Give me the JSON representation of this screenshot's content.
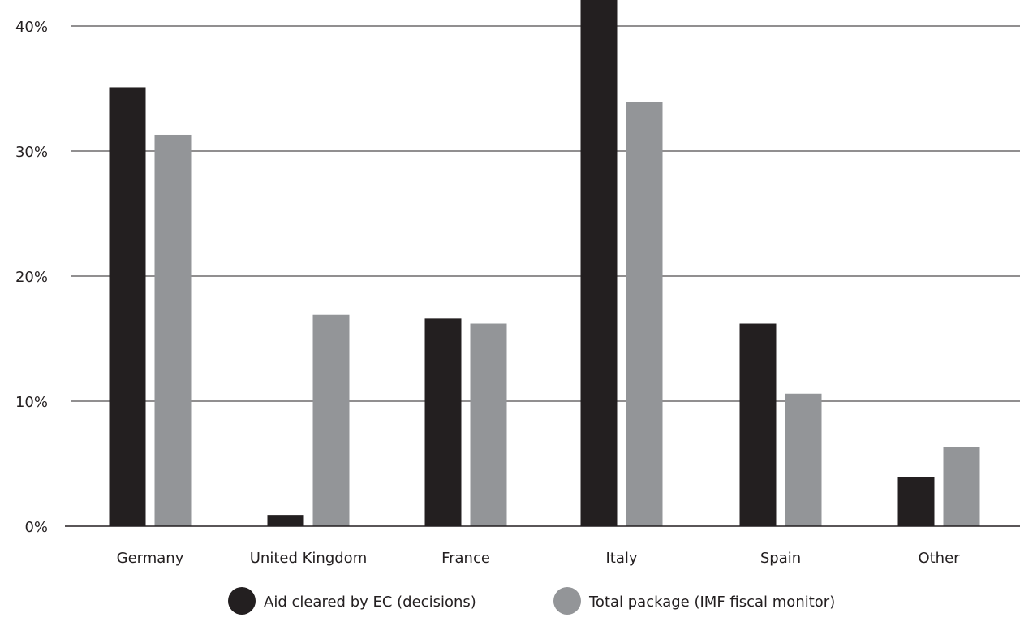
{
  "chart_data": {
    "type": "bar",
    "title": "",
    "xlabel": "",
    "ylabel": "",
    "categories": [
      "Germany",
      "United Kingdom",
      "France",
      "Italy",
      "Spain",
      "Other"
    ],
    "series": [
      {
        "name": "Aid cleared by EC (decisions)",
        "color": "#231f20",
        "values": [
          35.1,
          0.9,
          16.6,
          42.5,
          16.2,
          3.9
        ]
      },
      {
        "name": "Total package (IMF fiscal monitor)",
        "color": "#939598",
        "values": [
          31.3,
          16.9,
          16.2,
          33.9,
          10.6,
          6.3
        ]
      }
    ],
    "ylim": [
      0,
      40
    ],
    "yticks": [
      0,
      10,
      20,
      30,
      40
    ],
    "ytick_labels": [
      "0%",
      "10%",
      "20%",
      "30%",
      "40%"
    ],
    "grid": true,
    "legend_position": "bottom",
    "gridline_color": "#231f20"
  }
}
